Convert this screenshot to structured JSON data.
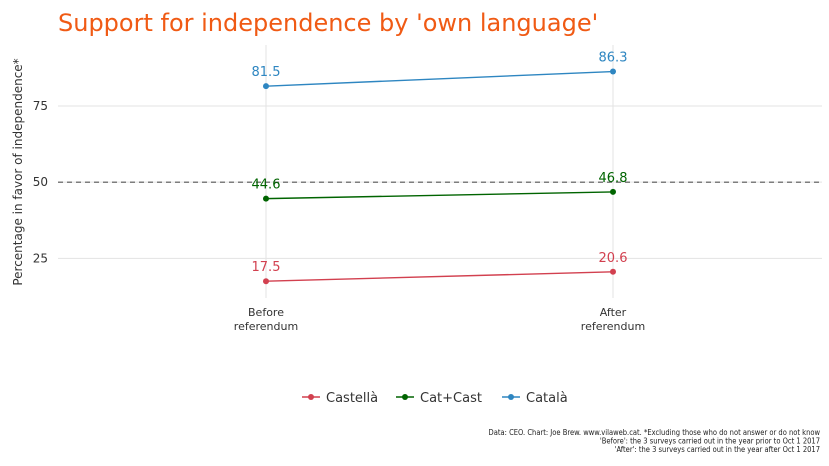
{
  "chart_data": {
    "type": "line",
    "title": "Support for independence by 'own language'",
    "xlabel": "",
    "ylabel": "Percentage in favor of independence*",
    "categories": [
      "Before\nreferendum",
      "After\nreferendum"
    ],
    "ylim": [
      12,
      95
    ],
    "yticks": [
      25,
      50,
      75
    ],
    "reference_line": 50,
    "grid": true,
    "legend_position": "bottom",
    "series": [
      {
        "name": "Castellà",
        "values": [
          17.5,
          20.6
        ],
        "labels": [
          "17.5",
          "20.6"
        ],
        "color": "#d2404f"
      },
      {
        "name": "Cat+Cast",
        "values": [
          44.6,
          46.8
        ],
        "labels": [
          "44.6",
          "46.8"
        ],
        "color": "#006400"
      },
      {
        "name": "Català",
        "values": [
          81.5,
          86.3
        ],
        "labels": [
          "81.5",
          "86.3"
        ],
        "color": "#2e86c1"
      }
    ],
    "caption": [
      "Data: CEO. Chart: Joe Brew. www.vilaweb.cat. *Excluding those who do not answer or do not know",
      "'Before': the 3 surveys carried out in the year prior to Oct 1 2017",
      "'After': the 3 surveys carried out in the year after Oct 1 2017"
    ]
  }
}
